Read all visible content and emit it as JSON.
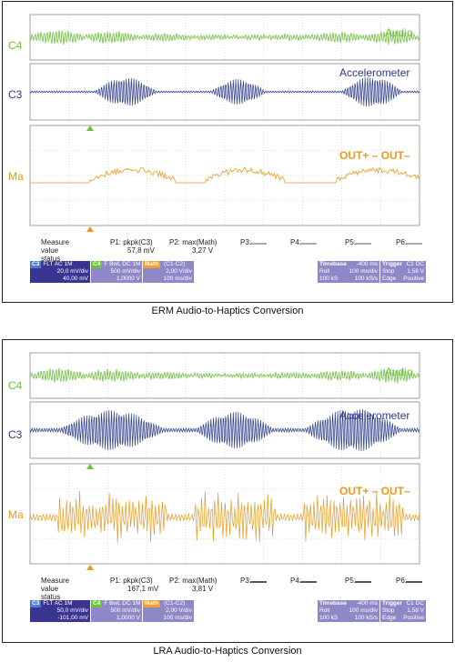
{
  "panels": [
    {
      "caption": "ERM Audio-to-Haptics Conversion",
      "channels": [
        {
          "label": "C4",
          "name": "Audio",
          "color": "#6cc13c"
        },
        {
          "label": "C3",
          "name": "Accelerometer",
          "color": "#2a3a8c"
        },
        {
          "label": "Ma",
          "name": "OUT+ – OUT–",
          "color": "#e89a20"
        }
      ],
      "measure": {
        "label": [
          "Measure",
          "value",
          "status"
        ],
        "p1_label": "P1: pkpk(C3)",
        "p1_value": "57,8 mV",
        "p2_label": "P2: max(Math)",
        "p2_value": "3,27 V",
        "p3": "P3:",
        "p4": "P4:",
        "p5": "P5:",
        "p6": "P6:"
      },
      "boxes": {
        "c3": {
          "tag": "C3",
          "flags": "FLT AC 1M",
          "v1": "20,0 mV/div",
          "v2": "40,00 mV"
        },
        "c4": {
          "tag": "C4",
          "flags": "F BwL DC 1M",
          "v1": "500 mV/div",
          "v2": "1,0000 V"
        },
        "math": {
          "tag": "Math",
          "expr": "(C1-C2)",
          "v1": "2,00 V/div",
          "v2": "100 ms/div"
        },
        "timebase": {
          "tag": "Timebase",
          "val": "-400 ms",
          "r1a": "Roll",
          "r1b": "100 ms/div",
          "r2a": "100 kS",
          "r2b": "100 kS/s"
        },
        "trigger": {
          "tag": "Trigger",
          "ch": "C1 DC",
          "r1a": "Stop",
          "r1b": "1,58 V",
          "r2a": "Edge",
          "r2b": "Positive"
        }
      }
    },
    {
      "caption": "LRA Audio-to-Haptics Conversion",
      "channels": [
        {
          "label": "C4",
          "name": "Audio",
          "color": "#6cc13c"
        },
        {
          "label": "C3",
          "name": "Accelerometer",
          "color": "#2a3a8c"
        },
        {
          "label": "Ma",
          "name": "OUT+ – OUT–",
          "color": "#e89a20"
        }
      ],
      "measure": {
        "label": [
          "Measure",
          "value",
          "status"
        ],
        "p1_label": "P1: pkpk(C3)",
        "p1_value": "167,1 mV",
        "p2_label": "P2: max(Math)",
        "p2_value": "3,81 V",
        "p3": "P3:",
        "p4": "P4:",
        "p5": "P5:",
        "p6": "P6:"
      },
      "boxes": {
        "c3": {
          "tag": "C3",
          "flags": "FLT AC 1M",
          "v1": "50,0 mV/div",
          "v2": "-101,00 mV"
        },
        "c4": {
          "tag": "C4",
          "flags": "F BwL DC 1M",
          "v1": "500 mV/div",
          "v2": "1,0000 V"
        },
        "math": {
          "tag": "Math",
          "expr": "(C1-C2)",
          "v1": "2,00 V/div",
          "v2": "100 ms/div"
        },
        "timebase": {
          "tag": "Timebase",
          "val": "-400 ms",
          "r1a": "Roll",
          "r1b": "100 ms/div",
          "r2a": "100 kS",
          "r2b": "100 kS/s"
        },
        "trigger": {
          "tag": "Trigger",
          "ch": "C1 DC",
          "r1a": "Stop",
          "r1b": "1,58 V",
          "r2a": "Edge",
          "r2b": "Positive"
        }
      }
    }
  ],
  "colors": {
    "box_dark": "#3a3590",
    "box_light": "#8f88c8",
    "math_tag": "#f0a030",
    "grid": "#c8c8c8"
  }
}
